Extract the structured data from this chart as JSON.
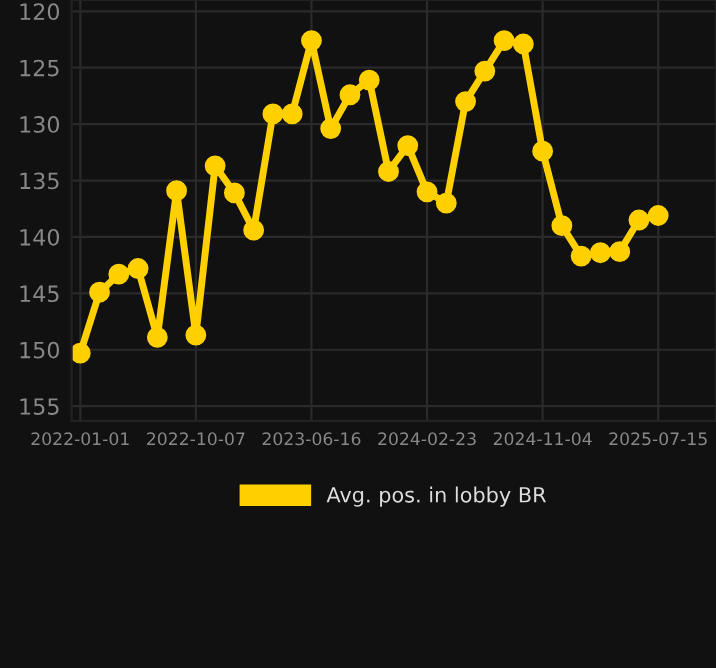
{
  "chart_data": {
    "type": "line",
    "categories": [
      "2022-01-01",
      null,
      null,
      null,
      null,
      null,
      "2022-10-07",
      null,
      null,
      null,
      null,
      null,
      "2023-06-16",
      null,
      null,
      null,
      null,
      null,
      "2024-02-23",
      null,
      null,
      null,
      null,
      null,
      "2024-11-04",
      null,
      null,
      null,
      null,
      null,
      "2025-07-15"
    ],
    "series": [
      {
        "name": "Avg. pos. in lobby BR",
        "color": "#ffd000",
        "values": [
          150.3,
          144.9,
          143.3,
          142.8,
          148.9,
          135.9,
          148.7,
          133.7,
          136.1,
          139.4,
          129.1,
          129.1,
          122.6,
          130.4,
          127.4,
          126.1,
          134.2,
          131.9,
          136.0,
          137.0,
          128.0,
          125.3,
          122.6,
          122.9,
          132.4,
          139.0,
          141.7,
          141.4,
          141.3,
          138.5,
          138.1
        ]
      }
    ],
    "ylim": [
      156.3,
      119
    ],
    "yticks": [
      120,
      125,
      130,
      135,
      140,
      145,
      150,
      155
    ],
    "grid": true,
    "legend": "bottom",
    "marker": "circle",
    "line_style": "solid"
  }
}
